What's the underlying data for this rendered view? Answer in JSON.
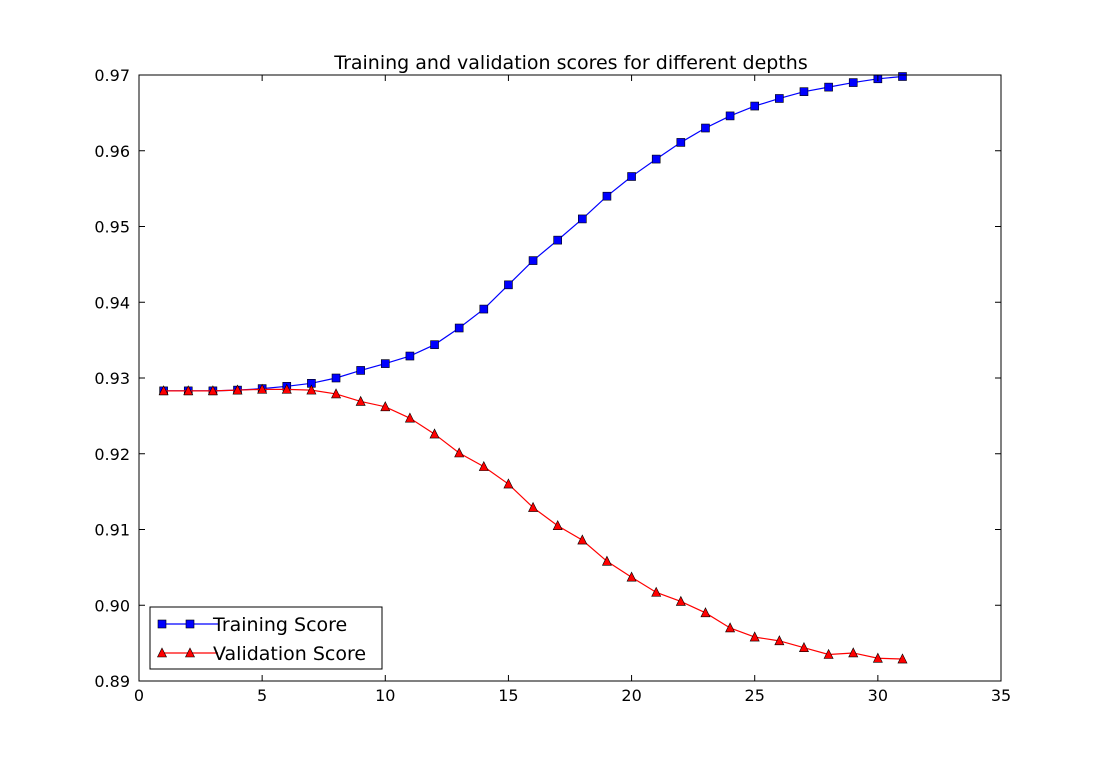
{
  "chart_data": {
    "type": "line",
    "title": "Training and validation scores for different depths",
    "xlabel": "",
    "ylabel": "",
    "xlim": [
      0,
      35
    ],
    "ylim": [
      0.89,
      0.97
    ],
    "xticks": [
      "0",
      "5",
      "10",
      "15",
      "20",
      "25",
      "30",
      "35"
    ],
    "yticks": [
      "0.89",
      "0.90",
      "0.91",
      "0.92",
      "0.93",
      "0.94",
      "0.95",
      "0.96",
      "0.97"
    ],
    "grid": false,
    "legend_position": "lower-left",
    "x": [
      1,
      2,
      3,
      4,
      5,
      6,
      7,
      8,
      9,
      10,
      11,
      12,
      13,
      14,
      15,
      16,
      17,
      18,
      19,
      20,
      21,
      22,
      23,
      24,
      25,
      26,
      27,
      28,
      29,
      30,
      31
    ],
    "series": [
      {
        "name": "Training Score",
        "color": "#0000ff",
        "marker": "square",
        "values": [
          0.9283,
          0.9283,
          0.9283,
          0.9284,
          0.9286,
          0.9289,
          0.9293,
          0.93,
          0.931,
          0.9319,
          0.9329,
          0.9344,
          0.9366,
          0.9391,
          0.9423,
          0.9455,
          0.9482,
          0.951,
          0.954,
          0.9566,
          0.9589,
          0.9611,
          0.963,
          0.9646,
          0.9659,
          0.9669,
          0.9678,
          0.9684,
          0.969,
          0.9695,
          0.9698
        ]
      },
      {
        "name": "Validation Score",
        "color": "#ff0000",
        "marker": "triangle",
        "values": [
          0.9283,
          0.9283,
          0.9283,
          0.9284,
          0.9285,
          0.9285,
          0.9284,
          0.9279,
          0.9269,
          0.9262,
          0.9247,
          0.9226,
          0.9201,
          0.9183,
          0.916,
          0.9129,
          0.9105,
          0.9086,
          0.9058,
          0.9037,
          0.9017,
          0.9005,
          0.899,
          0.897,
          0.8958,
          0.8953,
          0.8944,
          0.8935,
          0.8937,
          0.893,
          0.8929
        ]
      }
    ]
  }
}
